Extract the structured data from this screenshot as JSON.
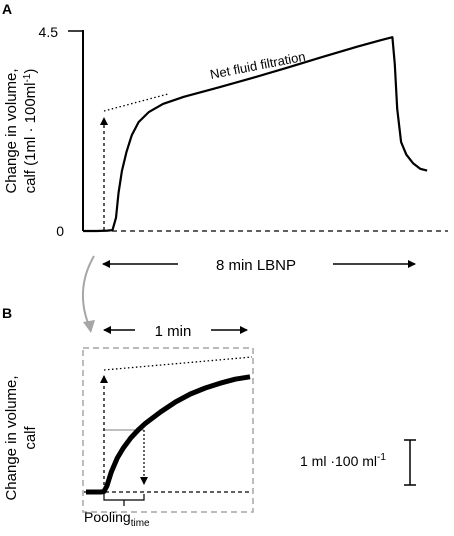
{
  "colors": {
    "trace": "#000000",
    "dashed_box": "#a6a6a6",
    "connector": "#a6a6a6",
    "guide_line": "#808080"
  },
  "chart_data": [
    {
      "panel": "A",
      "type": "line",
      "ylabel_line1": "Change in volume,",
      "ylabel_line2": "calf (1ml · 100ml",
      "ylabel_sup": "-1",
      "ylabel_close": ")",
      "ytick_top": "4.5",
      "ytick_zero": "0",
      "ylim": [
        0,
        4.5
      ],
      "annotation": "Net fluid filtration",
      "lbnp_label": "8 min LBNP",
      "x_units": "min",
      "xlim": [
        -0.9,
        9.6
      ],
      "series": [
        {
          "points": [
            [
              -0.9,
              0
            ],
            [
              -0.5,
              0
            ],
            [
              -0.2,
              0.01
            ],
            [
              -0.05,
              0.02
            ],
            [
              0.05,
              0.3
            ],
            [
              0.12,
              0.85
            ],
            [
              0.22,
              1.35
            ],
            [
              0.35,
              1.78
            ],
            [
              0.5,
              2.15
            ],
            [
              0.7,
              2.45
            ],
            [
              1.0,
              2.68
            ],
            [
              1.4,
              2.86
            ],
            [
              2.0,
              3.02
            ],
            [
              3.0,
              3.23
            ],
            [
              4.0,
              3.45
            ],
            [
              5.0,
              3.68
            ],
            [
              6.0,
              3.92
            ],
            [
              7.0,
              4.15
            ],
            [
              7.6,
              4.28
            ],
            [
              8.0,
              4.36
            ],
            [
              8.07,
              3.75
            ],
            [
              8.14,
              2.75
            ],
            [
              8.25,
              2.0
            ],
            [
              8.4,
              1.72
            ],
            [
              8.6,
              1.52
            ],
            [
              8.8,
              1.4
            ],
            [
              9.0,
              1.36
            ]
          ]
        }
      ]
    },
    {
      "panel": "B",
      "type": "line",
      "ylabel_line1": "Change in volume,",
      "ylabel_line2": "calf",
      "title": "1 min",
      "scale_bar": "1 ml ·100 ml",
      "scale_sup": "-1",
      "pooling_label": "Pooling",
      "pooling_sub": "time",
      "x_units": "min",
      "xlim": [
        -0.1,
        1.0
      ],
      "series": [
        {
          "points": [
            [
              -0.1,
              0
            ],
            [
              0.0,
              0
            ],
            [
              0.02,
              0.01
            ],
            [
              0.04,
              0.15
            ],
            [
              0.07,
              0.5
            ],
            [
              0.11,
              0.85
            ],
            [
              0.15,
              1.1
            ],
            [
              0.2,
              1.35
            ],
            [
              0.25,
              1.55
            ],
            [
              0.3,
              1.72
            ],
            [
              0.4,
              2.0
            ],
            [
              0.5,
              2.25
            ],
            [
              0.6,
              2.45
            ],
            [
              0.7,
              2.6
            ],
            [
              0.8,
              2.72
            ],
            [
              0.9,
              2.82
            ],
            [
              1.0,
              2.88
            ]
          ]
        }
      ]
    }
  ]
}
